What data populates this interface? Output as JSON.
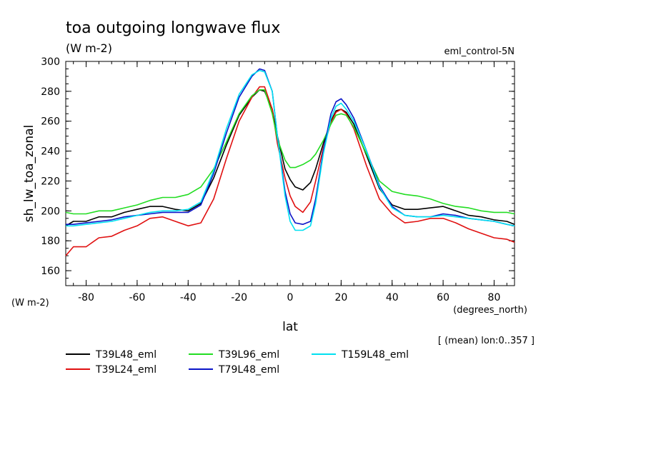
{
  "chart_data": {
    "type": "line",
    "title": "toa outgoing longwave flux",
    "units": "(W m-2)",
    "experiment": "eml_control-5N",
    "ylabel": "sh_lw_toa_zonal",
    "ylabel_units": "(W m-2)",
    "xlabel": "lat",
    "xlabel_units": "(degrees_north)",
    "footnote": "[ (mean) lon:0..357 ]",
    "xlim": [
      -88,
      88
    ],
    "ylim": [
      150,
      300
    ],
    "x_ticks": [
      "-80",
      "-60",
      "-40",
      "-20",
      "0",
      "20",
      "40",
      "60",
      "80"
    ],
    "y_ticks": [
      "160",
      "180",
      "200",
      "220",
      "240",
      "260",
      "280",
      "300"
    ],
    "x": [
      -88,
      -85,
      -80,
      -75,
      -70,
      -65,
      -60,
      -55,
      -50,
      -45,
      -40,
      -35,
      -30,
      -25,
      -20,
      -15,
      -12,
      -10,
      -7,
      -5,
      -2,
      0,
      2,
      5,
      8,
      10,
      13,
      16,
      18,
      20,
      22,
      25,
      30,
      35,
      40,
      45,
      50,
      55,
      60,
      65,
      70,
      75,
      80,
      85,
      88
    ],
    "series": [
      {
        "name": "T39L48_eml",
        "color": "#000000",
        "values": [
          190,
          193,
          193,
          196,
          196,
          199,
          201,
          203,
          203,
          201,
          200,
          205,
          222,
          244,
          264,
          276,
          281,
          280,
          268,
          250,
          228,
          221,
          216,
          214,
          219,
          228,
          245,
          260,
          267,
          268,
          266,
          258,
          237,
          215,
          204,
          201,
          201,
          202,
          203,
          200,
          197,
          196,
          194,
          193,
          191
        ]
      },
      {
        "name": "T39L24_eml",
        "color": "#e01010",
        "values": [
          170,
          176,
          176,
          182,
          183,
          187,
          190,
          195,
          196,
          193,
          190,
          192,
          208,
          235,
          260,
          276,
          283,
          283,
          268,
          245,
          222,
          210,
          203,
          199,
          206,
          220,
          242,
          259,
          266,
          268,
          265,
          255,
          230,
          208,
          198,
          192,
          193,
          195,
          195,
          192,
          188,
          185,
          182,
          181,
          179
        ]
      },
      {
        "name": "T39L96_eml",
        "color": "#22dd22",
        "values": [
          199,
          198,
          198,
          200,
          200,
          202,
          204,
          207,
          209,
          209,
          211,
          216,
          228,
          246,
          265,
          277,
          281,
          281,
          265,
          248,
          234,
          229,
          229,
          231,
          234,
          238,
          247,
          258,
          264,
          265,
          264,
          256,
          238,
          220,
          213,
          211,
          210,
          208,
          205,
          203,
          202,
          200,
          199,
          199,
          198
        ]
      },
      {
        "name": "T79L48_eml",
        "color": "#0a14c8",
        "values": [
          191,
          191,
          192,
          193,
          194,
          196,
          197,
          198,
          199,
          199,
          199,
          204,
          225,
          252,
          276,
          290,
          295,
          294,
          280,
          250,
          213,
          198,
          192,
          191,
          193,
          208,
          240,
          265,
          273,
          275,
          271,
          262,
          240,
          217,
          203,
          197,
          196,
          196,
          198,
          197,
          195,
          194,
          193,
          191,
          190
        ]
      },
      {
        "name": "T159L48_eml",
        "color": "#00e0f0",
        "values": [
          190,
          190,
          191,
          192,
          193,
          195,
          197,
          199,
          200,
          200,
          201,
          206,
          227,
          255,
          278,
          291,
          294,
          293,
          280,
          250,
          210,
          193,
          187,
          187,
          190,
          205,
          238,
          262,
          270,
          272,
          268,
          260,
          240,
          216,
          202,
          197,
          196,
          196,
          197,
          196,
          195,
          194,
          193,
          191,
          190
        ]
      }
    ]
  }
}
